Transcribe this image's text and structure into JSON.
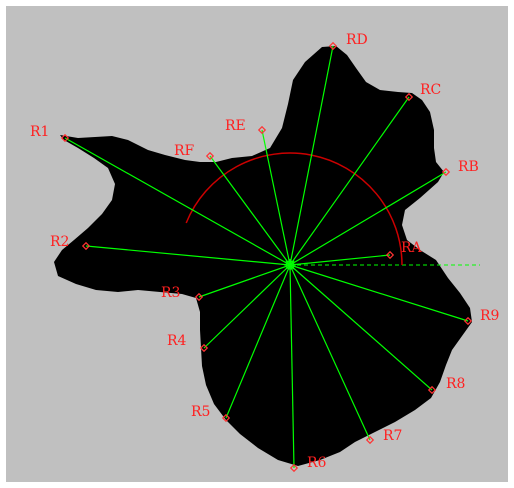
{
  "colors": {
    "background": "#c0c0c0",
    "outer_frame": "#ffffff",
    "shape_fill": "#000000",
    "ray": "#00ff00",
    "reference_line": "#00ff00",
    "angle_arc": "#cc0000",
    "marker": "#ff3333",
    "label": "#ff2020"
  },
  "shape": {
    "name": "black-blob"
  },
  "rays": [
    {
      "id": "R1",
      "label": "R1"
    },
    {
      "id": "R2",
      "label": "R2"
    },
    {
      "id": "R3",
      "label": "R3"
    },
    {
      "id": "R4",
      "label": "R4"
    },
    {
      "id": "R5",
      "label": "R5"
    },
    {
      "id": "R6",
      "label": "R6"
    },
    {
      "id": "R7",
      "label": "R7"
    },
    {
      "id": "R8",
      "label": "R8"
    },
    {
      "id": "R9",
      "label": "R9"
    },
    {
      "id": "RA",
      "label": "RA"
    },
    {
      "id": "RB",
      "label": "RB"
    },
    {
      "id": "RC",
      "label": "RC"
    },
    {
      "id": "RD",
      "label": "RD"
    },
    {
      "id": "RE",
      "label": "RE"
    },
    {
      "id": "RF",
      "label": "RF"
    }
  ]
}
